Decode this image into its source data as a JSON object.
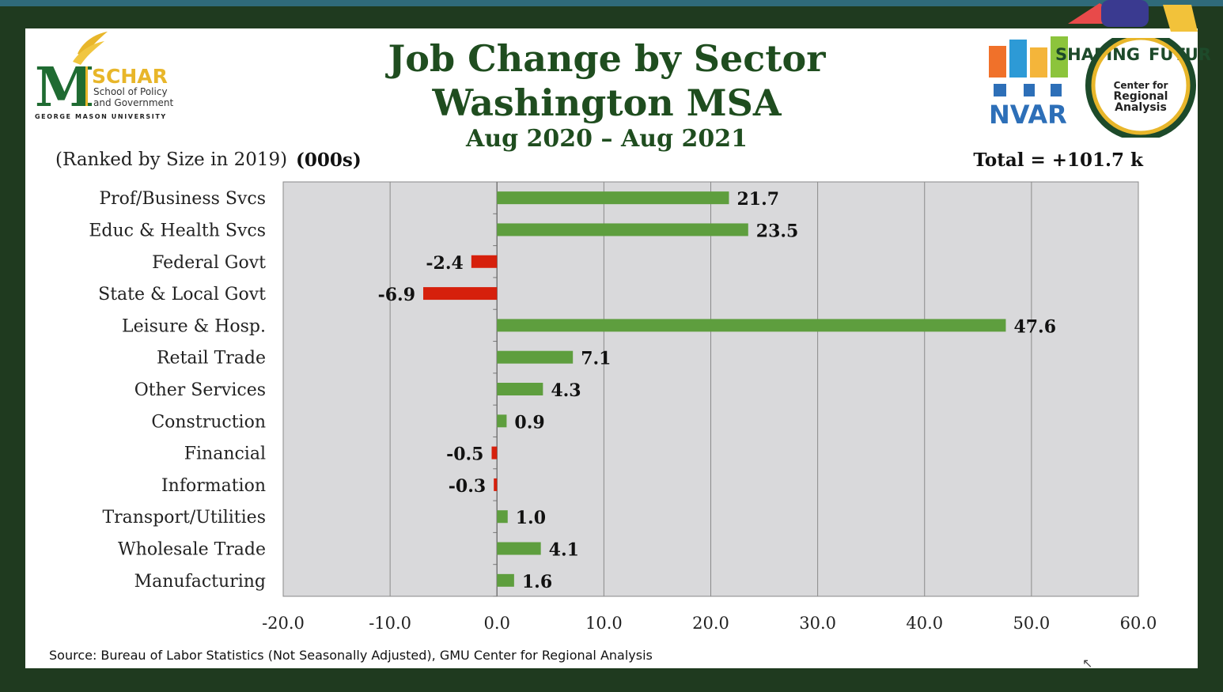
{
  "logos": {
    "schar": {
      "letter": "M",
      "name": "SCHAR",
      "line1": "School of Policy",
      "line2": "and Government",
      "university": "GEORGE MASON UNIVERSITY"
    },
    "nvar": {
      "name": "NVAR"
    },
    "shaping": {
      "text1": "SHAPING",
      "text2": "FUTURE"
    },
    "cra": {
      "line1": "Center for",
      "line2": "Regional",
      "line3": "Analysis"
    }
  },
  "header": {
    "ranked_note": "(Ranked by Size in 2019)",
    "units": "(000s)",
    "total": "Total = +101.7 k"
  },
  "source": "Source: Bureau of Labor Statistics (Not Seasonally Adjusted), GMU Center for Regional Analysis",
  "colors": {
    "positive": "#5e9e3e",
    "negative": "#d6200c",
    "plot_bg": "#d9d9db",
    "title": "#1f4d1f"
  },
  "chart_data": {
    "type": "bar",
    "orientation": "horizontal",
    "title": [
      "Job Change by Sector",
      "Washington MSA"
    ],
    "subtitle": "Aug 2020 – Aug 2021",
    "categories": [
      "Prof/Business Svcs",
      "Educ & Health Svcs",
      "Federal Govt",
      "State & Local Govt",
      "Leisure & Hosp.",
      "Retail Trade",
      "Other Services",
      "Construction",
      "Financial",
      "Information",
      "Transport/Utilities",
      "Wholesale Trade",
      "Manufacturing"
    ],
    "values": [
      21.7,
      23.5,
      -2.4,
      -6.9,
      47.6,
      7.1,
      4.3,
      0.9,
      -0.5,
      -0.3,
      1.0,
      4.1,
      1.6
    ],
    "value_labels": [
      "21.7",
      "23.5",
      "-2.4",
      "-6.9",
      "47.6",
      "7.1",
      "4.3",
      "0.9",
      "-0.5",
      "-0.3",
      "1.0",
      "4.1",
      "1.6"
    ],
    "xlim": [
      -20,
      60
    ],
    "xticks": [
      -20,
      -10,
      0,
      10,
      20,
      30,
      40,
      50,
      60
    ],
    "xtick_labels": [
      "-20.0",
      "-10.0",
      "0.0",
      "10.0",
      "20.0",
      "30.0",
      "40.0",
      "50.0",
      "60.0"
    ],
    "grid": true,
    "legend": "none"
  }
}
